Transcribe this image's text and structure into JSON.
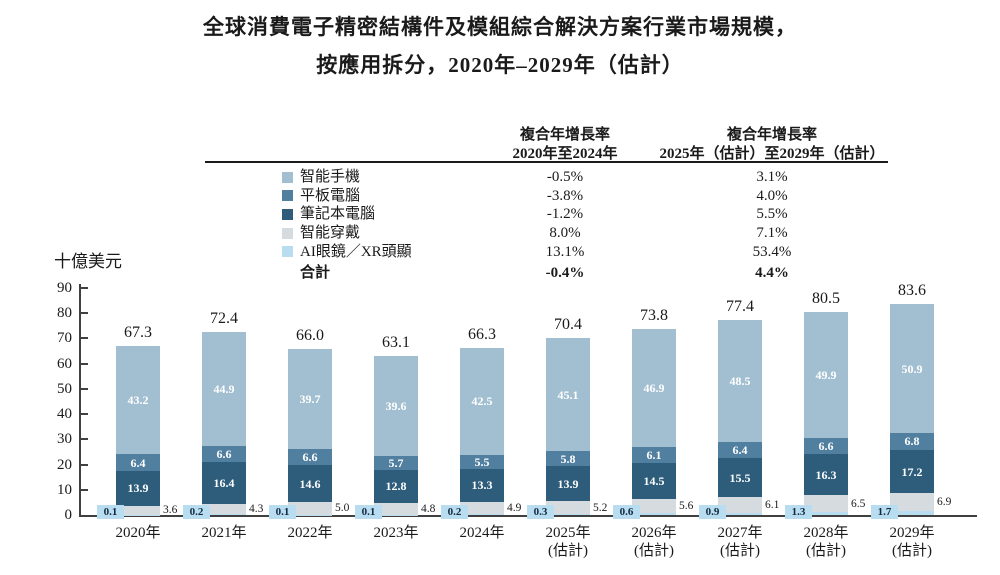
{
  "title": {
    "line1": "全球消費電子精密結構件及模組綜合解決方案行業市場規模，",
    "line2": "按應用拆分，2020年–2029年（估計）"
  },
  "cagr_table": {
    "header_col1": [
      "複合年增長率",
      "2020年至2024年"
    ],
    "header_col2": [
      "複合年增長率",
      "2025年（估計）至2029年（估計）"
    ],
    "rows": [
      {
        "id": "smartphones",
        "label": "智能手機",
        "color": "#a2bfd1",
        "cagr_2020_2024": "-0.5%",
        "cagr_2025_2029": "3.1%"
      },
      {
        "id": "tablets",
        "label": "平板電腦",
        "color": "#517fa0",
        "cagr_2020_2024": "-3.8%",
        "cagr_2025_2029": "4.0%"
      },
      {
        "id": "laptops",
        "label": "筆記本電腦",
        "color": "#2e5d7c",
        "cagr_2020_2024": "-1.2%",
        "cagr_2025_2029": "5.5%"
      },
      {
        "id": "smart-wearables",
        "label": "智能穿戴",
        "color": "#d6dbdf",
        "cagr_2020_2024": "8.0%",
        "cagr_2025_2029": "7.1%"
      },
      {
        "id": "ai-glasses-xr",
        "label": "AI眼鏡／XR頭顯",
        "color": "#b8dcf0",
        "cagr_2020_2024": "13.1%",
        "cagr_2025_2029": "53.4%"
      }
    ],
    "total_row": {
      "label": "合計",
      "cagr_2020_2024": "-0.4%",
      "cagr_2025_2029": "4.4%"
    }
  },
  "chart_data": {
    "type": "bar",
    "stacked": true,
    "title": "全球消費電子精密結構件及模組綜合解決方案行業市場規模，按應用拆分，2020年–2029年（估計）",
    "unit_label": "十億美元",
    "ylim": [
      0,
      90
    ],
    "yticks": [
      0,
      10,
      20,
      30,
      40,
      50,
      60,
      70,
      80,
      90
    ],
    "grid": false,
    "categories": [
      "2020年",
      "2021年",
      "2022年",
      "2023年",
      "2024年",
      "2025年",
      "2026年",
      "2027年",
      "2028年",
      "2029年"
    ],
    "category_subs": [
      "",
      "",
      "",
      "",
      "",
      "(估計)",
      "(估計)",
      "(估計)",
      "(估計)",
      "(估計)"
    ],
    "series": [
      {
        "name": "AI眼鏡／XR頭顯",
        "id": "ai-glasses-xr",
        "color": "#b8dcf0",
        "label_style": "callout-left",
        "values": [
          0.1,
          0.2,
          0.1,
          0.1,
          0.2,
          0.3,
          0.6,
          0.9,
          1.3,
          1.7
        ]
      },
      {
        "name": "智能穿戴",
        "id": "smart-wearables",
        "color": "#d6dbdf",
        "label_style": "outside-right",
        "values": [
          3.6,
          4.3,
          5.0,
          4.8,
          4.9,
          5.2,
          5.6,
          6.1,
          6.5,
          6.9
        ]
      },
      {
        "name": "筆記本電腦",
        "id": "laptops",
        "color": "#2e5d7c",
        "label_style": "inside",
        "values": [
          13.9,
          16.4,
          14.6,
          12.8,
          13.3,
          13.9,
          14.5,
          15.5,
          16.3,
          17.2
        ]
      },
      {
        "name": "平板電腦",
        "id": "tablets",
        "color": "#517fa0",
        "label_style": "inside",
        "values": [
          6.4,
          6.6,
          6.6,
          5.7,
          5.5,
          5.8,
          6.1,
          6.4,
          6.6,
          6.8
        ]
      },
      {
        "name": "智能手機",
        "id": "smartphones",
        "color": "#a2bfd1",
        "label_style": "inside",
        "values": [
          43.2,
          44.9,
          39.7,
          39.6,
          42.5,
          45.1,
          46.9,
          48.5,
          49.9,
          50.9
        ]
      }
    ],
    "totals": [
      67.3,
      72.4,
      66.0,
      63.1,
      66.3,
      70.4,
      73.8,
      77.4,
      80.5,
      83.6
    ]
  }
}
